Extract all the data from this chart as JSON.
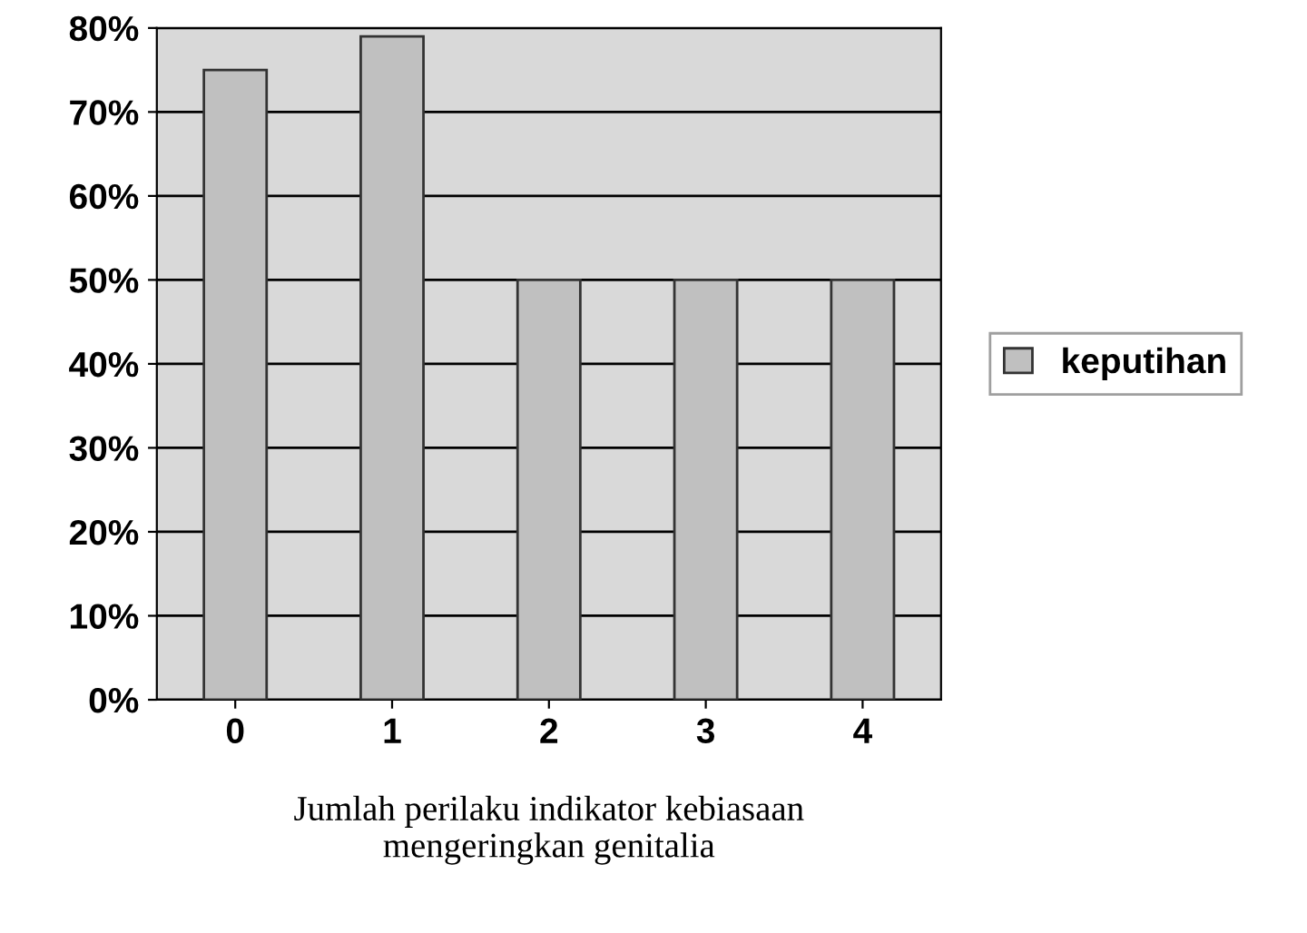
{
  "chart_data": {
    "type": "bar",
    "categories": [
      "0",
      "1",
      "2",
      "3",
      "4"
    ],
    "series": [
      {
        "name": "keputihan",
        "color": "#c0c0c0",
        "values": [
          75,
          79,
          50,
          50,
          50
        ]
      }
    ],
    "xlabel": "Jumlah perilaku indikator kebiasaan\nmengeringkan genitalia",
    "ylim": [
      0,
      80
    ],
    "yticks": [
      {
        "value": 0,
        "label": "0%"
      },
      {
        "value": 10,
        "label": "10%"
      },
      {
        "value": 20,
        "label": "20%"
      },
      {
        "value": 30,
        "label": "30%"
      },
      {
        "value": 40,
        "label": "40%"
      },
      {
        "value": 50,
        "label": "50%"
      },
      {
        "value": 60,
        "label": "60%"
      },
      {
        "value": 70,
        "label": "70%"
      },
      {
        "value": 80,
        "label": "80%"
      }
    ],
    "grid": "y",
    "legend": "right"
  }
}
